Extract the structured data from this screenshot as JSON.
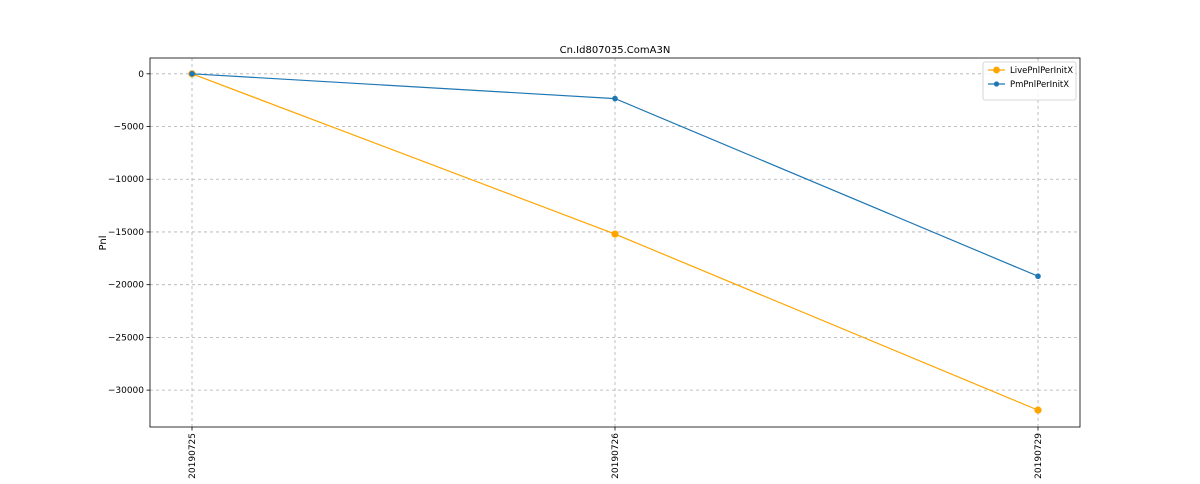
{
  "chart_data": {
    "type": "line",
    "title": "Cn.Id807035.ComA3N",
    "xlabel": "",
    "ylabel": "Pnl",
    "categories": [
      "20190725",
      "20190726",
      "20190729"
    ],
    "ylim": [
      -33500,
      1500
    ],
    "yticks": [
      0,
      -5000,
      -10000,
      -15000,
      -20000,
      -25000,
      -30000
    ],
    "grid": true,
    "legend_position": "top-right",
    "series": [
      {
        "name": "LivePnlPerInitX",
        "color": "#ffa500",
        "marker": "circle",
        "values": [
          0,
          -15200,
          -31900
        ]
      },
      {
        "name": "PmPnlPerInitX",
        "color": "#1f77b4",
        "marker": "circle",
        "values": [
          0,
          -2350,
          -19200
        ]
      }
    ]
  }
}
